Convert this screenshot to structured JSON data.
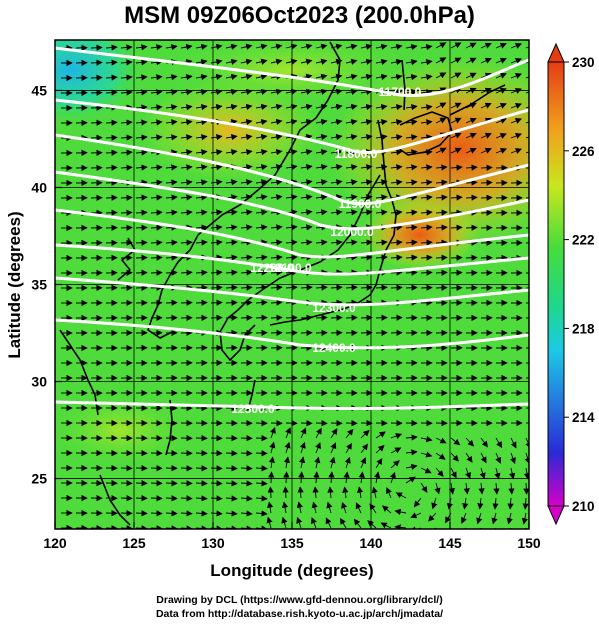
{
  "title": "MSM 09Z06Oct2023 (200.0hPa)",
  "x_axis": {
    "label": "Longitude (degrees)",
    "ticks": [
      "120",
      "125",
      "130",
      "135",
      "140",
      "145",
      "150"
    ],
    "range": [
      120,
      150
    ]
  },
  "y_axis": {
    "label": "Latitude  (degrees)",
    "ticks": [
      "25",
      "30",
      "35",
      "40",
      "45"
    ],
    "range": [
      22.4,
      47.6
    ]
  },
  "colorbar": {
    "ticks": [
      "230",
      "226",
      "222",
      "218",
      "214",
      "210"
    ],
    "range": [
      210,
      230
    ],
    "colors": [
      "#d600c8",
      "#2a2ad6",
      "#1ec8e6",
      "#1ed78c",
      "#46dc3c",
      "#c8e61e",
      "#f0a01e",
      "#e63c14"
    ]
  },
  "contours": [
    {
      "label": "11700.0"
    },
    {
      "label": "11800.0"
    },
    {
      "label": "11900.0"
    },
    {
      "label": "12000.0"
    },
    {
      "label": "12100.0"
    },
    {
      "label": "12200.0"
    },
    {
      "label": "12300.0"
    },
    {
      "label": "12400.0"
    },
    {
      "label": "12500.0"
    }
  ],
  "credits": {
    "line1": "Drawing by DCL (https://www.gfd-dennou.org/library/dcl/)",
    "line2": "Data from http://database.rish.kyoto-u.ac.jp/arch/jmadata/"
  }
}
